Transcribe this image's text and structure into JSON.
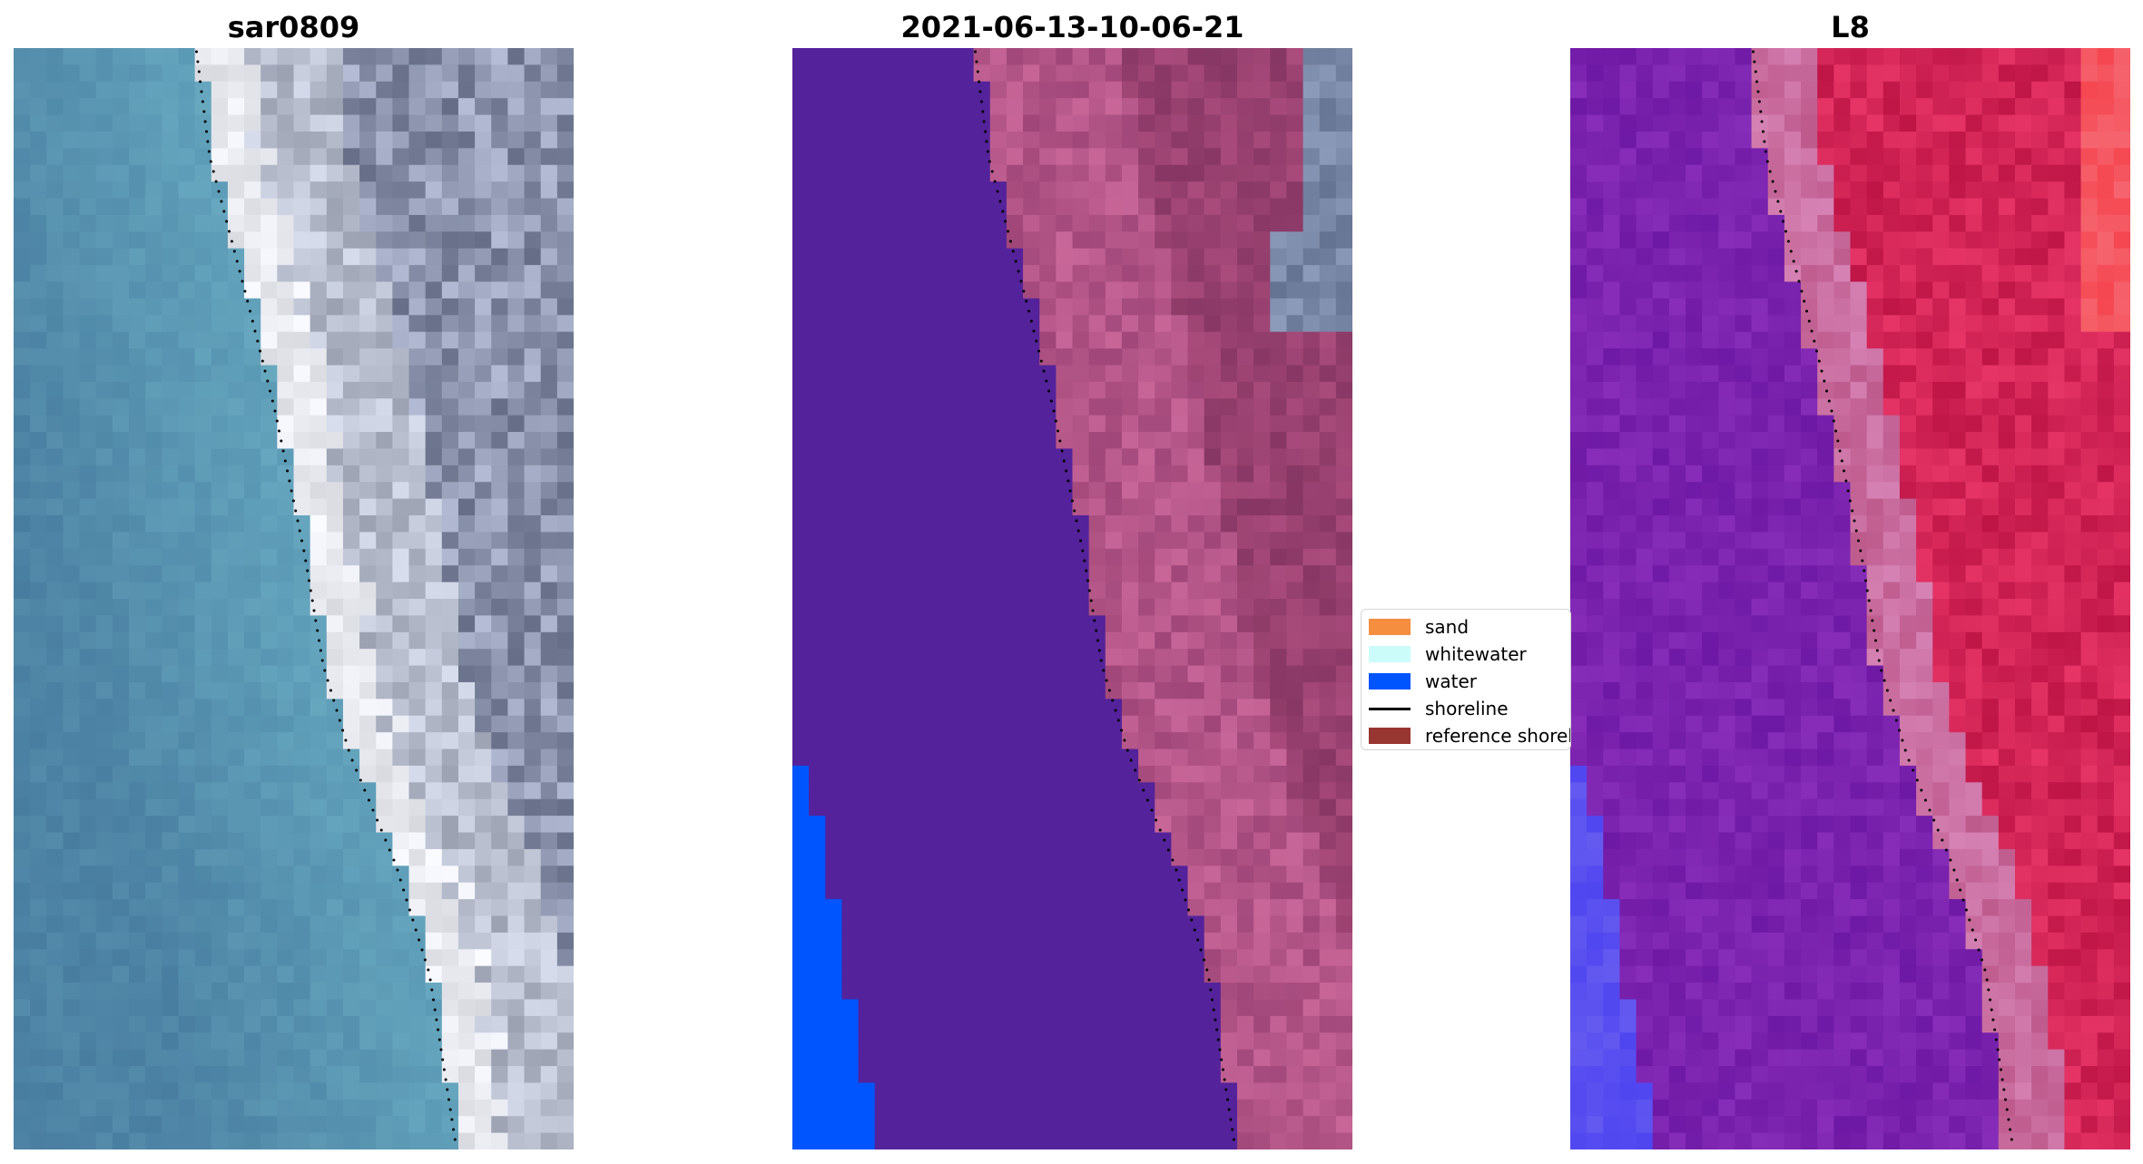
{
  "panels": [
    {
      "title": "sar0809",
      "type": "rgb"
    },
    {
      "title": "2021-06-13-10-06-21",
      "type": "classified"
    },
    {
      "title": "L8",
      "type": "mndwi"
    }
  ],
  "legend": {
    "items": [
      {
        "label": "sand",
        "color": "#f58e3f",
        "kind": "patch"
      },
      {
        "label": "whitewater",
        "color": "#cbfcf9",
        "kind": "patch"
      },
      {
        "label": "water",
        "color": "#0055ff",
        "kind": "patch"
      },
      {
        "label": "shoreline",
        "color": "#000000",
        "kind": "line"
      },
      {
        "label": "reference shoreline",
        "color": "#983632",
        "kind": "patch"
      }
    ]
  },
  "colors": {
    "sea_rgb": "#5a8fb4",
    "land_rgb": "#9aa3b8",
    "class_water_overlay": "#54229a",
    "class_land": "#96406f",
    "class_water_edge": "#0055ff",
    "mndwi_water": "#7a22a6",
    "mndwi_land": "#c9174a"
  }
}
